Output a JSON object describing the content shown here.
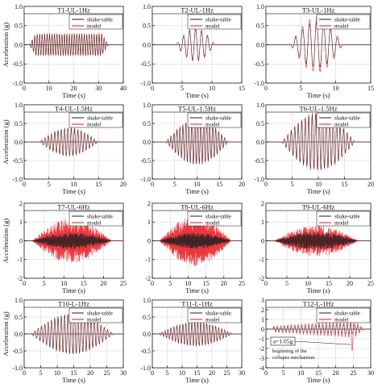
{
  "figure": {
    "colors": {
      "shake_table": "#222222",
      "model": "#e8141c",
      "grid": "#cfcfcf",
      "axis": "#111111"
    }
  },
  "chart_data": [
    {
      "type": "line",
      "title": "T1-UL-1Hz",
      "xlabel": "Time (s)",
      "ylabel": "Acceleration (g)",
      "xlim": [
        0,
        40
      ],
      "ylim": [
        -1,
        1
      ],
      "xticks": [
        0,
        10,
        20,
        30,
        40
      ],
      "yticks": [
        -1,
        -0.5,
        0,
        0.5,
        1
      ],
      "tick_labels_x": [
        "0",
        "10",
        "20",
        "30",
        "40"
      ],
      "tick_labels_y": [
        "-1.0",
        "-0.5",
        "0.0",
        "0.5",
        "1.0"
      ],
      "legend": "top-right",
      "grid": true,
      "series": [
        {
          "name": "shake-table",
          "color": "#222222",
          "signal": {
            "t_start": 2,
            "t_end": 34,
            "freq_hz": 1,
            "peak_g": 0.28,
            "envelope": "flat"
          }
        },
        {
          "name": "model",
          "color": "#e8141c",
          "signal": {
            "t_start": 2,
            "t_end": 34,
            "freq_hz": 1,
            "peak_g": 0.3,
            "envelope": "flat"
          }
        }
      ]
    },
    {
      "type": "line",
      "title": "T2-UL-1Hz",
      "xlabel": "Time (s)",
      "ylabel": "",
      "xlim": [
        0,
        15
      ],
      "ylim": [
        -1,
        1
      ],
      "xticks": [
        0,
        5,
        10,
        15
      ],
      "yticks": [
        -1,
        -0.5,
        0,
        0.5,
        1
      ],
      "tick_labels_x": [
        "0",
        "5",
        "10",
        "15"
      ],
      "tick_labels_y": [
        "-1.0",
        "-0.5",
        "0.0",
        "0.5",
        "1.0"
      ],
      "legend": "top-right",
      "grid": true,
      "series": [
        {
          "name": "shake-table",
          "color": "#222222",
          "signal": {
            "t_start": 4,
            "t_end": 10.5,
            "freq_hz": 1,
            "peak_g": 0.42,
            "envelope": "diamond"
          }
        },
        {
          "name": "model",
          "color": "#e8141c",
          "signal": {
            "t_start": 4,
            "t_end": 10.5,
            "freq_hz": 1,
            "peak_g": 0.45,
            "envelope": "diamond"
          }
        }
      ]
    },
    {
      "type": "line",
      "title": "T3-UL-1Hz",
      "xlabel": "Time (s)",
      "ylabel": "",
      "xlim": [
        0,
        15
      ],
      "ylim": [
        -1,
        1
      ],
      "xticks": [
        0,
        5,
        10,
        15
      ],
      "yticks": [
        -1,
        -0.5,
        0,
        0.5,
        1
      ],
      "tick_labels_x": [
        "0",
        "5",
        "10",
        "15"
      ],
      "tick_labels_y": [
        "-1.0",
        "-0.5",
        "0.0",
        "0.5",
        "1.0"
      ],
      "legend": "top-right",
      "grid": true,
      "series": [
        {
          "name": "shake-table",
          "color": "#222222",
          "signal": {
            "t_start": 3.5,
            "t_end": 11,
            "freq_hz": 1,
            "peak_g": 0.62,
            "envelope": "diamond"
          }
        },
        {
          "name": "model",
          "color": "#e8141c",
          "signal": {
            "t_start": 3.5,
            "t_end": 11,
            "freq_hz": 1,
            "peak_g": 0.75,
            "envelope": "diamond"
          }
        }
      ]
    },
    {
      "type": "line",
      "title": "T4-UL-1.5Hz",
      "xlabel": "Time (s)",
      "ylabel": "Acceleration (g)",
      "xlim": [
        0,
        20
      ],
      "ylim": [
        -1,
        1
      ],
      "xticks": [
        0,
        5,
        10,
        15,
        20
      ],
      "yticks": [
        -1,
        -0.5,
        0,
        0.5,
        1
      ],
      "tick_labels_x": [
        "0",
        "5",
        "10",
        "15",
        "20"
      ],
      "tick_labels_y": [
        "-1.0",
        "-0.5",
        "0.0",
        "0.5",
        "1.0"
      ],
      "legend": "top-right",
      "grid": true,
      "series": [
        {
          "name": "shake-table",
          "color": "#222222",
          "signal": {
            "t_start": 3,
            "t_end": 15,
            "freq_hz": 1.5,
            "peak_g": 0.38,
            "envelope": "diamond"
          }
        },
        {
          "name": "model",
          "color": "#e8141c",
          "signal": {
            "t_start": 3,
            "t_end": 15,
            "freq_hz": 1.5,
            "peak_g": 0.4,
            "envelope": "diamond"
          }
        }
      ]
    },
    {
      "type": "line",
      "title": "T5-UL-1.5Hz",
      "xlabel": "Time (s)",
      "ylabel": "",
      "xlim": [
        0,
        20
      ],
      "ylim": [
        -1,
        1
      ],
      "xticks": [
        0,
        5,
        10,
        15,
        20
      ],
      "yticks": [
        -1,
        -0.5,
        0,
        0.5,
        1
      ],
      "tick_labels_x": [
        "0",
        "5",
        "10",
        "15",
        "20"
      ],
      "tick_labels_y": [
        "-1.0",
        "-0.5",
        "0.0",
        "0.5",
        "1.0"
      ],
      "legend": "top-right",
      "grid": true,
      "series": [
        {
          "name": "shake-table",
          "color": "#222222",
          "signal": {
            "t_start": 3,
            "t_end": 17,
            "freq_hz": 1.5,
            "peak_g": 0.62,
            "envelope": "diamond"
          }
        },
        {
          "name": "model",
          "color": "#e8141c",
          "signal": {
            "t_start": 3,
            "t_end": 17,
            "freq_hz": 1.5,
            "peak_g": 0.65,
            "envelope": "diamond"
          }
        }
      ]
    },
    {
      "type": "line",
      "title": "T6-UL-1.5Hz",
      "xlabel": "Time (s)",
      "ylabel": "",
      "xlim": [
        0,
        20
      ],
      "ylim": [
        -1,
        1
      ],
      "xticks": [
        0,
        5,
        10,
        15,
        20
      ],
      "yticks": [
        -1,
        -0.5,
        0,
        0.5,
        1
      ],
      "tick_labels_x": [
        "0",
        "5",
        "10",
        "15",
        "20"
      ],
      "tick_labels_y": [
        "-1.0",
        "-0.5",
        "0.0",
        "0.5",
        "1.0"
      ],
      "legend": "top-right",
      "grid": true,
      "series": [
        {
          "name": "shake-table",
          "color": "#222222",
          "signal": {
            "t_start": 3,
            "t_end": 17,
            "freq_hz": 1.5,
            "peak_g": 0.78,
            "envelope": "diamond"
          }
        },
        {
          "name": "model",
          "color": "#e8141c",
          "signal": {
            "t_start": 3,
            "t_end": 17,
            "freq_hz": 1.5,
            "peak_g": 0.82,
            "envelope": "diamond"
          }
        }
      ]
    },
    {
      "type": "line",
      "title": "T7-UL-6Hz",
      "xlabel": "Time (s)",
      "ylabel": "Acceleration (g)",
      "xlim": [
        0,
        25
      ],
      "ylim": [
        -2,
        2
      ],
      "xticks": [
        0,
        5,
        10,
        15,
        20,
        25
      ],
      "yticks": [
        -2,
        -1,
        0,
        1,
        2
      ],
      "tick_labels_x": [
        "0",
        "5",
        "10",
        "15",
        "20",
        "25"
      ],
      "tick_labels_y": [
        "-2",
        "-1",
        "0",
        "1",
        "2"
      ],
      "legend": "top-right",
      "grid": true,
      "series": [
        {
          "name": "shake-table",
          "color": "#222222",
          "signal": {
            "t_start": 2,
            "t_end": 22,
            "freq_hz": 6,
            "peak_g": 0.5,
            "envelope": "diamond"
          }
        },
        {
          "name": "model",
          "color": "#e8141c",
          "signal": {
            "t_start": 2,
            "t_end": 22,
            "freq_hz": 6,
            "peak_g": 1.4,
            "envelope": "diamond"
          }
        }
      ]
    },
    {
      "type": "line",
      "title": "T8-UL-6Hz",
      "xlabel": "Time (s)",
      "ylabel": "",
      "xlim": [
        0,
        25
      ],
      "ylim": [
        -2,
        2
      ],
      "xticks": [
        0,
        5,
        10,
        15,
        20,
        25
      ],
      "yticks": [
        -2,
        -1,
        0,
        1,
        2
      ],
      "tick_labels_x": [
        "0",
        "5",
        "10",
        "15",
        "20",
        "25"
      ],
      "tick_labels_y": [
        "-2",
        "-1",
        "0",
        "1",
        "2"
      ],
      "legend": "top-right",
      "grid": true,
      "series": [
        {
          "name": "shake-table",
          "color": "#222222",
          "signal": {
            "t_start": 2,
            "t_end": 22,
            "freq_hz": 6,
            "peak_g": 0.5,
            "envelope": "diamond"
          }
        },
        {
          "name": "model",
          "color": "#e8141c",
          "signal": {
            "t_start": 2,
            "t_end": 22,
            "freq_hz": 6,
            "peak_g": 1.6,
            "envelope": "diamond"
          }
        }
      ]
    },
    {
      "type": "line",
      "title": "T9-UL-6Hz",
      "xlabel": "Time (s)",
      "ylabel": "",
      "xlim": [
        0,
        25
      ],
      "ylim": [
        -2,
        2
      ],
      "xticks": [
        0,
        5,
        10,
        15,
        20,
        25
      ],
      "yticks": [
        -2,
        -1,
        0,
        1,
        2
      ],
      "tick_labels_x": [
        "0",
        "5",
        "10",
        "15",
        "20",
        "25"
      ],
      "tick_labels_y": [
        "-2",
        "-1",
        "0",
        "1",
        "2"
      ],
      "legend": "top-right",
      "grid": true,
      "series": [
        {
          "name": "shake-table",
          "color": "#222222",
          "signal": {
            "t_start": 2,
            "t_end": 22,
            "freq_hz": 6,
            "peak_g": 0.55,
            "envelope": "diamond"
          }
        },
        {
          "name": "model",
          "color": "#e8141c",
          "signal": {
            "t_start": 2,
            "t_end": 22,
            "freq_hz": 6,
            "peak_g": 1.0,
            "envelope": "diamond"
          }
        }
      ]
    },
    {
      "type": "line",
      "title": "T10-L-1Hz",
      "xlabel": "Time (s)",
      "ylabel": "Acceleration (g)",
      "xlim": [
        0,
        30
      ],
      "ylim": [
        -1,
        1
      ],
      "xticks": [
        0,
        5,
        10,
        15,
        20,
        25,
        30
      ],
      "yticks": [
        -1,
        -0.5,
        0,
        0.5,
        1
      ],
      "tick_labels_x": [
        "0",
        "5",
        "10",
        "15",
        "20",
        "25",
        "30"
      ],
      "tick_labels_y": [
        "-1.0",
        "-0.5",
        "0.0",
        "0.5",
        "1.0"
      ],
      "legend": "top-right",
      "grid": true,
      "series": [
        {
          "name": "shake-table",
          "color": "#222222",
          "signal": {
            "t_start": 2,
            "t_end": 27,
            "freq_hz": 1,
            "peak_g": 0.6,
            "envelope": "diamond"
          }
        },
        {
          "name": "model",
          "color": "#e8141c",
          "signal": {
            "t_start": 2,
            "t_end": 27,
            "freq_hz": 1,
            "peak_g": 0.62,
            "envelope": "diamond"
          }
        }
      ]
    },
    {
      "type": "line",
      "title": "T11-L-1Hz",
      "xlabel": "Time (s)",
      "ylabel": "",
      "xlim": [
        0,
        30
      ],
      "ylim": [
        -1,
        1
      ],
      "xticks": [
        0,
        5,
        10,
        15,
        20,
        25,
        30
      ],
      "yticks": [
        -1,
        -0.5,
        0,
        0.5,
        1
      ],
      "tick_labels_x": [
        "0",
        "5",
        "10",
        "15",
        "20",
        "25",
        "30"
      ],
      "tick_labels_y": [
        "-1.0",
        "-0.5",
        "0.0",
        "0.5",
        "1.0"
      ],
      "legend": "top-right",
      "grid": true,
      "series": [
        {
          "name": "shake-table",
          "color": "#222222",
          "signal": {
            "t_start": 2,
            "t_end": 27,
            "freq_hz": 1,
            "peak_g": 0.35,
            "envelope": "diamond"
          }
        },
        {
          "name": "model",
          "color": "#e8141c",
          "signal": {
            "t_start": 2,
            "t_end": 27,
            "freq_hz": 1,
            "peak_g": 0.37,
            "envelope": "diamond"
          }
        }
      ]
    },
    {
      "type": "line",
      "title": "T12-L-1Hz",
      "xlabel": "Time (s)",
      "ylabel": "",
      "xlim": [
        0,
        30
      ],
      "ylim": [
        -4,
        3
      ],
      "xticks": [
        0,
        5,
        10,
        15,
        20,
        25,
        30
      ],
      "yticks": [
        -4,
        -3,
        -2,
        -1,
        0,
        1,
        2,
        3
      ],
      "tick_labels_x": [
        "0",
        "5",
        "10",
        "15",
        "20",
        "25",
        "30"
      ],
      "tick_labels_y": [
        "-4",
        "-3",
        "-2",
        "-1",
        "0",
        "1",
        "2",
        "3"
      ],
      "legend": "top-right",
      "grid": true,
      "annotations": [
        "a=1.05g",
        "beginning of the",
        "collapse mechanism"
      ],
      "series": [
        {
          "name": "shake-table",
          "color": "#222222",
          "signal": {
            "t_start": 2,
            "t_end": 28,
            "freq_hz": 1,
            "peak_g": 0.55,
            "envelope": "ramp"
          }
        },
        {
          "name": "model",
          "color": "#e8141c",
          "signal": {
            "t_start": 2,
            "t_end": 28,
            "freq_hz": 1,
            "peak_g": 0.9,
            "envelope": "ramp",
            "spike_time": 25,
            "spike_low": -2.2,
            "spike_high": 1.9
          }
        }
      ]
    }
  ]
}
